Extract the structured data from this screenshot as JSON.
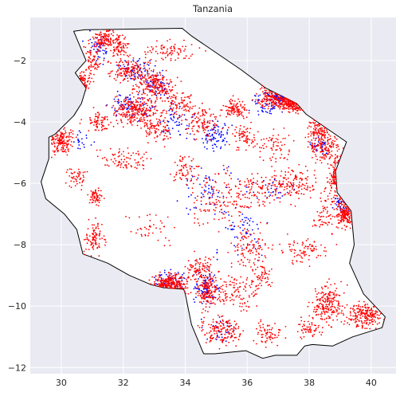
{
  "chart_data": {
    "type": "scatter",
    "title": "Tanzania",
    "xlabel": "",
    "ylabel": "",
    "xlim": [
      29.0,
      40.8
    ],
    "ylim": [
      -12.2,
      -0.6
    ],
    "x_ticks": [
      30,
      32,
      34,
      36,
      38,
      40
    ],
    "y_ticks": [
      -2,
      -4,
      -6,
      -8,
      -10,
      -12
    ],
    "grid": true,
    "legend": "none",
    "boundary_polygon": [
      [
        30.4,
        -1.05
      ],
      [
        30.75,
        -1.0
      ],
      [
        33.9,
        -0.95
      ],
      [
        34.2,
        -1.2
      ],
      [
        35.8,
        -2.3
      ],
      [
        36.6,
        -2.9
      ],
      [
        37.6,
        -3.4
      ],
      [
        37.9,
        -3.75
      ],
      [
        39.2,
        -4.65
      ],
      [
        38.85,
        -5.6
      ],
      [
        38.9,
        -6.3
      ],
      [
        39.35,
        -6.9
      ],
      [
        39.45,
        -8.0
      ],
      [
        39.3,
        -8.6
      ],
      [
        39.75,
        -9.6
      ],
      [
        40.45,
        -10.35
      ],
      [
        40.35,
        -10.7
      ],
      [
        39.4,
        -11.0
      ],
      [
        38.75,
        -11.3
      ],
      [
        38.1,
        -11.25
      ],
      [
        37.85,
        -11.3
      ],
      [
        37.6,
        -11.6
      ],
      [
        36.9,
        -11.6
      ],
      [
        36.5,
        -11.7
      ],
      [
        35.95,
        -11.45
      ],
      [
        34.95,
        -11.55
      ],
      [
        34.6,
        -11.55
      ],
      [
        34.55,
        -11.45
      ],
      [
        34.2,
        -10.6
      ],
      [
        34.0,
        -9.6
      ],
      [
        33.95,
        -9.45
      ],
      [
        33.3,
        -9.4
      ],
      [
        32.9,
        -9.3
      ],
      [
        32.2,
        -9.0
      ],
      [
        31.5,
        -8.6
      ],
      [
        30.7,
        -8.3
      ],
      [
        30.5,
        -7.5
      ],
      [
        30.1,
        -7.0
      ],
      [
        29.5,
        -6.5
      ],
      [
        29.35,
        -5.95
      ],
      [
        29.6,
        -5.2
      ],
      [
        29.6,
        -4.5
      ],
      [
        29.8,
        -4.4
      ],
      [
        30.4,
        -3.8
      ],
      [
        30.65,
        -3.4
      ],
      [
        30.8,
        -2.9
      ],
      [
        30.45,
        -2.4
      ],
      [
        30.8,
        -2.0
      ],
      [
        30.4,
        -1.05
      ]
    ],
    "series": [
      {
        "color": "#0000ff",
        "clusters": [
          [
            31.2,
            -1.6,
            0.35,
            0.45,
            40
          ],
          [
            32.4,
            -2.3,
            0.5,
            0.3,
            60
          ],
          [
            33.1,
            -2.8,
            0.4,
            0.35,
            50
          ],
          [
            32.3,
            -3.5,
            0.6,
            0.35,
            70
          ],
          [
            33.7,
            -4.0,
            0.5,
            0.5,
            50
          ],
          [
            34.9,
            -4.5,
            0.45,
            0.45,
            80
          ],
          [
            36.7,
            -3.4,
            0.5,
            0.35,
            60
          ],
          [
            37.4,
            -3.1,
            0.55,
            0.25,
            40
          ],
          [
            34.7,
            -6.2,
            0.9,
            0.8,
            60
          ],
          [
            35.8,
            -7.5,
            0.8,
            0.7,
            60
          ],
          [
            34.7,
            -9.4,
            0.35,
            0.45,
            90
          ],
          [
            33.5,
            -9.1,
            0.5,
            0.25,
            50
          ],
          [
            35.2,
            -10.8,
            0.5,
            0.4,
            30
          ],
          [
            39.0,
            -6.7,
            0.3,
            0.3,
            30
          ],
          [
            36.8,
            -6.2,
            0.6,
            0.3,
            30
          ],
          [
            30.6,
            -4.6,
            0.3,
            0.3,
            20
          ],
          [
            38.3,
            -4.8,
            0.4,
            0.3,
            30
          ]
        ]
      },
      {
        "color": "#ff0000",
        "clusters": [
          [
            31.4,
            -1.3,
            0.35,
            0.3,
            120
          ],
          [
            31.0,
            -2.0,
            0.25,
            0.5,
            70
          ],
          [
            31.9,
            -1.5,
            0.25,
            0.35,
            70
          ],
          [
            33.5,
            -1.7,
            0.8,
            0.3,
            80
          ],
          [
            32.2,
            -2.3,
            0.6,
            0.35,
            150
          ],
          [
            33.0,
            -2.8,
            0.55,
            0.4,
            200
          ],
          [
            32.4,
            -3.6,
            0.65,
            0.4,
            250
          ],
          [
            33.1,
            -4.2,
            0.5,
            0.4,
            100
          ],
          [
            34.6,
            -4.0,
            0.45,
            0.45,
            100
          ],
          [
            35.6,
            -3.6,
            0.35,
            0.3,
            100
          ],
          [
            35.9,
            -4.5,
            0.35,
            0.35,
            70
          ],
          [
            36.9,
            -3.2,
            0.5,
            0.3,
            160
          ],
          [
            37.6,
            -3.3,
            0.45,
            0.3,
            150
          ],
          [
            38.5,
            -4.8,
            0.45,
            0.45,
            150
          ],
          [
            39.0,
            -5.8,
            0.3,
            0.6,
            100
          ],
          [
            37.6,
            -6.0,
            0.6,
            0.5,
            120
          ],
          [
            36.5,
            -6.2,
            0.8,
            0.5,
            100
          ],
          [
            35.2,
            -6.5,
            1.0,
            0.9,
            150
          ],
          [
            39.2,
            -7.0,
            0.3,
            0.4,
            160
          ],
          [
            37.8,
            -8.2,
            0.6,
            0.4,
            80
          ],
          [
            36.1,
            -8.1,
            0.6,
            0.5,
            100
          ],
          [
            34.5,
            -8.8,
            0.4,
            0.4,
            100
          ],
          [
            33.5,
            -9.3,
            0.55,
            0.3,
            250
          ],
          [
            34.7,
            -9.5,
            0.3,
            0.5,
            160
          ],
          [
            35.7,
            -9.6,
            0.6,
            0.5,
            100
          ],
          [
            35.2,
            -10.8,
            0.6,
            0.4,
            150
          ],
          [
            36.7,
            -10.9,
            0.4,
            0.3,
            70
          ],
          [
            38.6,
            -9.9,
            0.45,
            0.6,
            200
          ],
          [
            39.8,
            -10.3,
            0.5,
            0.35,
            200
          ],
          [
            30.0,
            -4.6,
            0.35,
            0.4,
            150
          ],
          [
            30.5,
            -5.8,
            0.3,
            0.3,
            50
          ],
          [
            31.1,
            -6.4,
            0.25,
            0.25,
            60
          ],
          [
            31.1,
            -7.8,
            0.3,
            0.5,
            90
          ],
          [
            32.1,
            -5.2,
            0.7,
            0.3,
            80
          ],
          [
            30.7,
            -2.7,
            0.2,
            0.3,
            50
          ],
          [
            31.2,
            -4.0,
            0.4,
            0.3,
            70
          ],
          [
            38.3,
            -4.2,
            0.35,
            0.35,
            80
          ],
          [
            33.8,
            -3.4,
            0.5,
            0.4,
            90
          ],
          [
            34.0,
            -5.5,
            0.4,
            0.4,
            60
          ],
          [
            36.9,
            -4.8,
            0.5,
            0.5,
            60
          ],
          [
            38.0,
            -10.7,
            0.5,
            0.3,
            60
          ],
          [
            36.4,
            -9.0,
            0.4,
            0.4,
            60
          ],
          [
            32.9,
            -7.5,
            0.7,
            0.6,
            40
          ],
          [
            38.5,
            -7.0,
            0.3,
            0.6,
            60
          ]
        ]
      }
    ]
  }
}
